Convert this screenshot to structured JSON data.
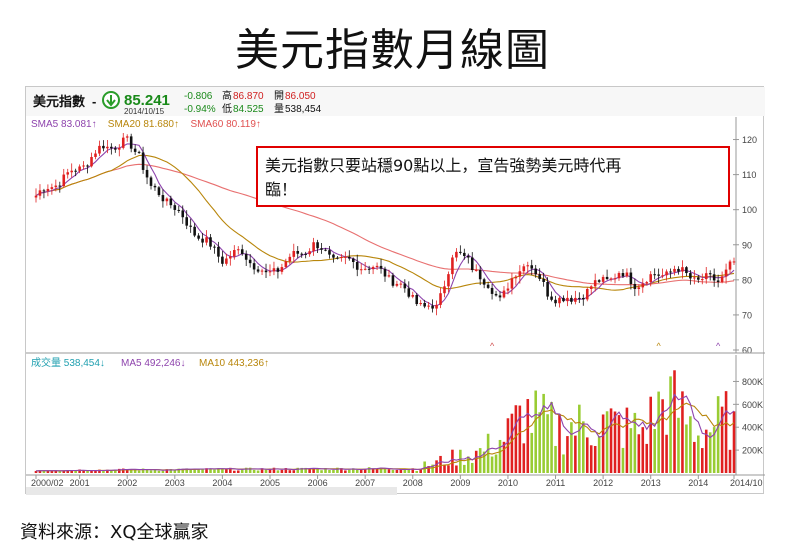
{
  "page": {
    "title": "美元指數月線圖",
    "source": "資料來源：XQ全球贏家"
  },
  "quote": {
    "name": "美元指數",
    "dash": "-",
    "price": "85.241",
    "change": "-0.806",
    "change_pct": "-0.94%",
    "date": "2014/10/15",
    "high_label": "高",
    "high": "86.870",
    "low_label": "低",
    "low": "84.525",
    "open_label": "開",
    "open": "86.050",
    "volume_label": "量",
    "volume": "538,454",
    "down_icon": "down-arrow-circle-icon"
  },
  "ma_legend": [
    {
      "label": "SMA5",
      "value": "83.081",
      "arrow": "↑",
      "color": "#8e44ad"
    },
    {
      "label": "SMA20",
      "value": "81.680",
      "arrow": "↑",
      "color": "#b8860b"
    },
    {
      "label": "SMA60",
      "value": "80.119",
      "arrow": "↑",
      "color": "#e05050"
    }
  ],
  "vol_legend": [
    {
      "label": "成交量",
      "value": "538,454",
      "arrow": "↓",
      "color": "#20a0b0"
    },
    {
      "label": "MA5",
      "value": "492,246",
      "arrow": "↓",
      "color": "#8e44ad"
    },
    {
      "label": "MA10",
      "value": "443,236",
      "arrow": "↑",
      "color": "#b8860b"
    }
  ],
  "annotation": {
    "text_line1": "美元指數只要站穩90點以上，宣告強勢美元時代再",
    "text_line2": "臨！",
    "border_color": "#e00000"
  },
  "colors": {
    "up": "#e02020",
    "down": "#111111",
    "vol_up": "#e02020",
    "vol_down": "#99cc33",
    "ma5": "#8e44ad",
    "ma20": "#b8860b",
    "ma60": "#e87070"
  },
  "chart_data": [
    {
      "type": "candlestick",
      "title": "美元指數",
      "x_tick_labels": [
        "2000/02",
        "2001",
        "2002",
        "2003",
        "2004",
        "2005",
        "2006",
        "2007",
        "2008",
        "2009",
        "2010",
        "2011",
        "2012",
        "2013",
        "2014",
        "2014/10"
      ],
      "y_tick_labels": [
        "120",
        "110",
        "100",
        "90",
        "80",
        "70",
        "60"
      ],
      "ylim": [
        60,
        123
      ],
      "grid": false,
      "anchor_points": [
        {
          "x": "2000/02",
          "y": 104
        },
        {
          "x": "2001/01",
          "y": 112
        },
        {
          "x": "2001/07",
          "y": 118
        },
        {
          "x": "2002/01",
          "y": 119
        },
        {
          "x": "2002/04",
          "y": 116
        },
        {
          "x": "2002/07",
          "y": 106
        },
        {
          "x": "2002/12",
          "y": 102
        },
        {
          "x": "2003/04",
          "y": 96
        },
        {
          "x": "2004/01",
          "y": 86
        },
        {
          "x": "2004/06",
          "y": 88
        },
        {
          "x": "2004/12",
          "y": 81
        },
        {
          "x": "2005/06",
          "y": 86
        },
        {
          "x": "2005/12",
          "y": 90
        },
        {
          "x": "2006/05",
          "y": 86
        },
        {
          "x": "2007/01",
          "y": 84
        },
        {
          "x": "2007/06",
          "y": 82
        },
        {
          "x": "2007/12",
          "y": 76
        },
        {
          "x": "2008/04",
          "y": 72
        },
        {
          "x": "2008/07",
          "y": 72
        },
        {
          "x": "2008/11",
          "y": 87
        },
        {
          "x": "2009/03",
          "y": 86
        },
        {
          "x": "2009/07",
          "y": 79
        },
        {
          "x": "2009/11",
          "y": 75
        },
        {
          "x": "2010/06",
          "y": 86
        },
        {
          "x": "2010/11",
          "y": 76
        },
        {
          "x": "2011/05",
          "y": 74
        },
        {
          "x": "2011/10",
          "y": 78
        },
        {
          "x": "2012/05",
          "y": 82
        },
        {
          "x": "2012/09",
          "y": 79
        },
        {
          "x": "2013/02",
          "y": 81
        },
        {
          "x": "2013/07",
          "y": 83
        },
        {
          "x": "2014/01",
          "y": 80
        },
        {
          "x": "2014/06",
          "y": 80
        },
        {
          "x": "2014/10",
          "y": 85.2
        }
      ],
      "series": [
        {
          "name": "SMA5",
          "value": 83.081
        },
        {
          "name": "SMA20",
          "value": 81.68
        },
        {
          "name": "SMA60",
          "value": 80.119
        }
      ]
    },
    {
      "type": "bar",
      "title": "成交量",
      "y_tick_labels": [
        "800K",
        "600K",
        "400K",
        "200K"
      ],
      "ylim": [
        0,
        900000
      ],
      "volume_profile": [
        {
          "x": "2000/02",
          "y": 25000
        },
        {
          "x": "2008/01",
          "y": 40000
        },
        {
          "x": "2008/10",
          "y": 130000
        },
        {
          "x": "2009/06",
          "y": 200000
        },
        {
          "x": "2009/12",
          "y": 330000
        },
        {
          "x": "2010/05",
          "y": 560000
        },
        {
          "x": "2011/01",
          "y": 420000
        },
        {
          "x": "2012/01",
          "y": 470000
        },
        {
          "x": "2012/11",
          "y": 400000
        },
        {
          "x": "2013/05",
          "y": 720000
        },
        {
          "x": "2014/01",
          "y": 380000
        },
        {
          "x": "2014/10",
          "y": 538454
        }
      ],
      "series": [
        {
          "name": "MA5",
          "value": 492246
        },
        {
          "name": "MA10",
          "value": 443236
        }
      ]
    }
  ]
}
